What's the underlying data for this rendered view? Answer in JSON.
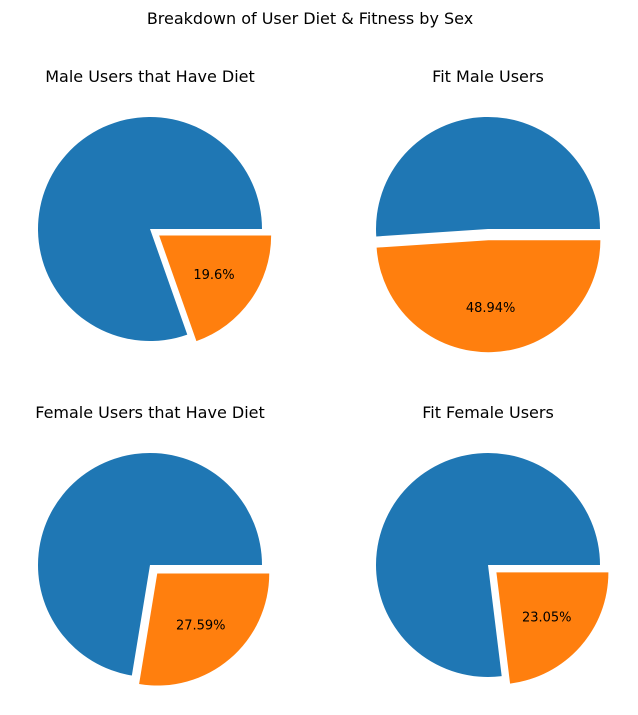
{
  "figure": {
    "suptitle": "Breakdown of User Diet & Fitness by Sex"
  },
  "colors": {
    "blue": "#1f77b4",
    "orange": "#ff7f0e"
  },
  "chart_data": [
    {
      "type": "pie",
      "title": "Male Users that Have Diet",
      "slices": [
        {
          "value": 80.4,
          "color": "#1f77b4",
          "exploded": false,
          "label": ""
        },
        {
          "value": 19.6,
          "color": "#ff7f0e",
          "exploded": true,
          "label": "19.6%"
        }
      ]
    },
    {
      "type": "pie",
      "title": "Fit Male Users",
      "slices": [
        {
          "value": 51.06,
          "color": "#1f77b4",
          "exploded": false,
          "label": ""
        },
        {
          "value": 48.94,
          "color": "#ff7f0e",
          "exploded": true,
          "label": "48.94%"
        }
      ]
    },
    {
      "type": "pie",
      "title": "Female Users that Have Diet",
      "slices": [
        {
          "value": 72.41,
          "color": "#1f77b4",
          "exploded": false,
          "label": ""
        },
        {
          "value": 27.59,
          "color": "#ff7f0e",
          "exploded": true,
          "label": "27.59%"
        }
      ]
    },
    {
      "type": "pie",
      "title": "Fit Female Users",
      "slices": [
        {
          "value": 76.95,
          "color": "#1f77b4",
          "exploded": false,
          "label": ""
        },
        {
          "value": 23.05,
          "color": "#ff7f0e",
          "exploded": true,
          "label": "23.05%"
        }
      ]
    }
  ]
}
